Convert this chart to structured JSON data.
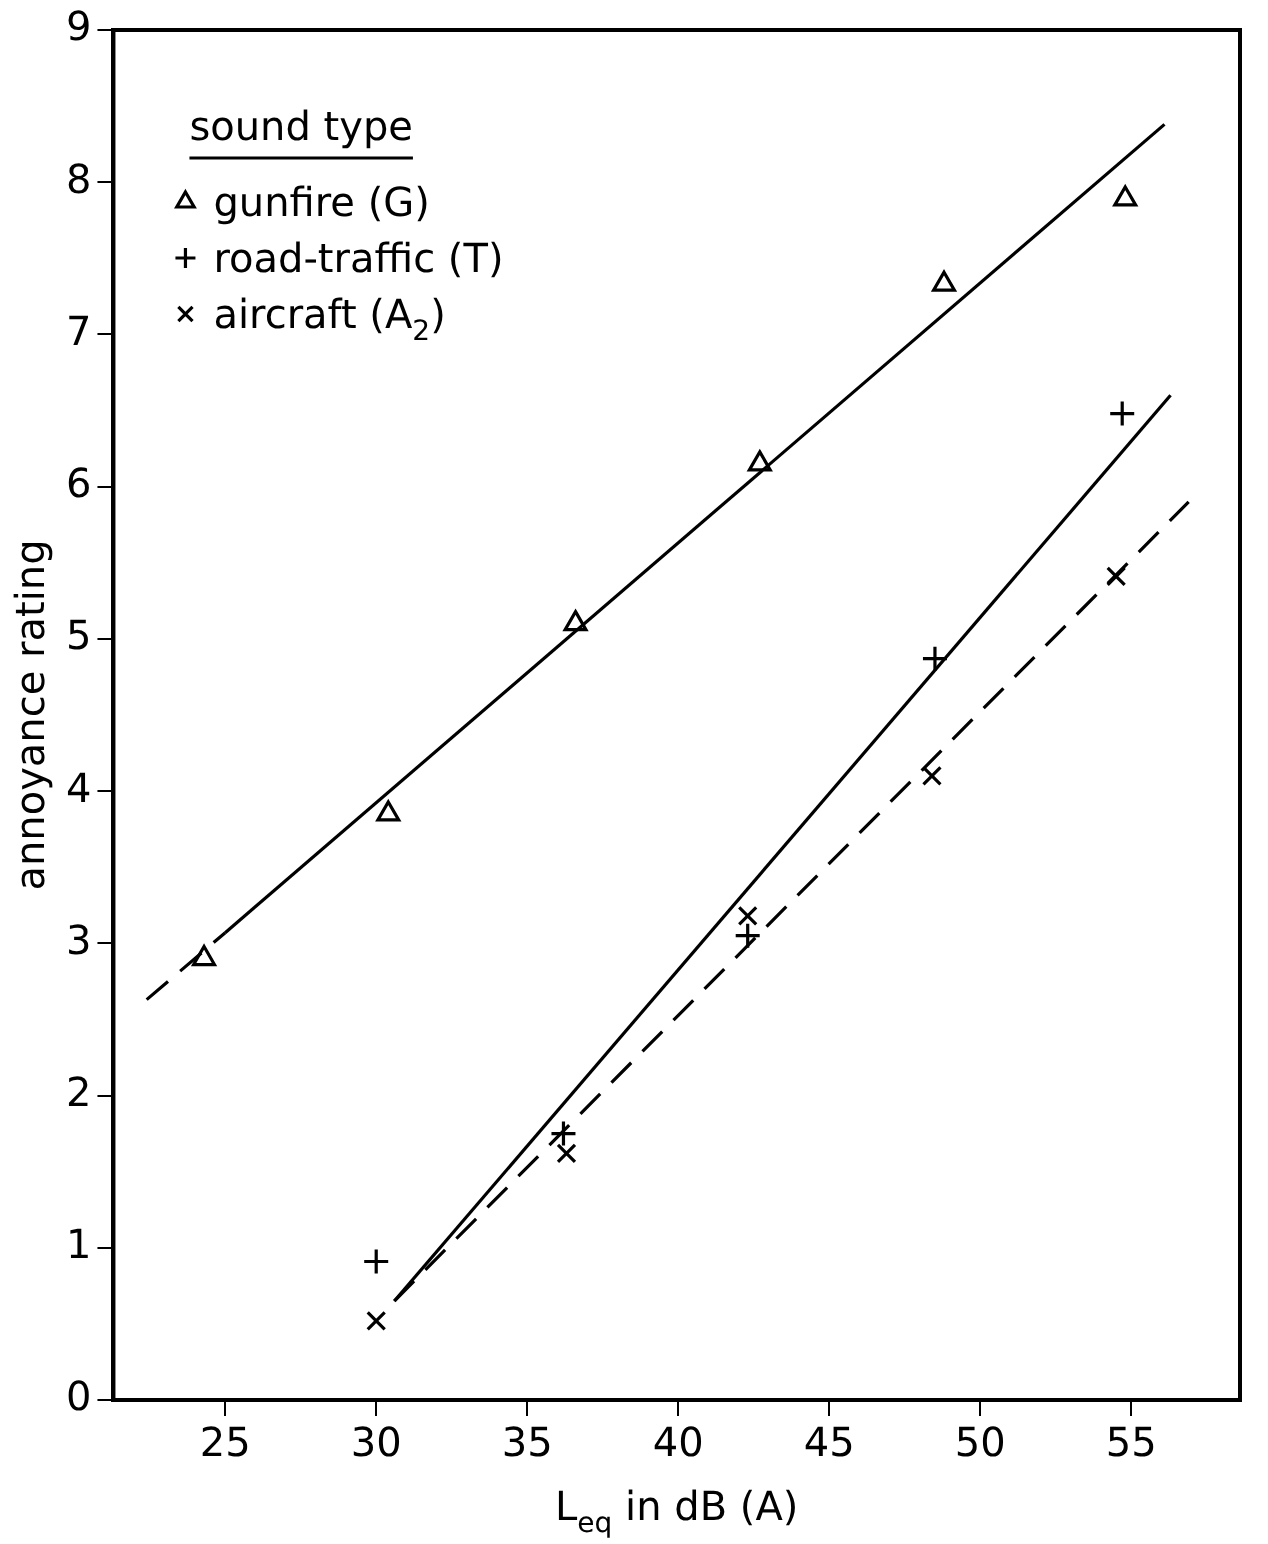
{
  "chart_data": {
    "type": "scatter",
    "xlabel": "L$_{eq}$ in dB (A)",
    "ylabel": "annoyance rating",
    "legend_title": "sound type",
    "legend": "top left",
    "grid": false,
    "xlim": [
      21.3,
      58.6
    ],
    "xticks": [
      25,
      30,
      35,
      40,
      45,
      50,
      55
    ],
    "ylim": [
      0,
      9
    ],
    "yticks": [
      0,
      1,
      2,
      3,
      4,
      5,
      6,
      7,
      8,
      9
    ],
    "series": [
      {
        "name": "gunfire (G)",
        "color": "#000000",
        "marker": "triangle",
        "x": [
          24.3,
          30.4,
          36.6,
          42.7,
          48.8,
          54.8
        ],
        "values": [
          2.9,
          3.85,
          5.1,
          6.15,
          7.33,
          7.89
        ]
      },
      {
        "name": "road-traffic (T)",
        "color": "#000000",
        "marker": "cross",
        "x": [
          30.0,
          36.2,
          42.3,
          48.5,
          54.7
        ],
        "values": [
          0.91,
          1.75,
          3.05,
          4.87,
          6.48
        ]
      },
      {
        "name": "aircraft (A$_{2}$)",
        "color": "#000000",
        "marker": "x",
        "x": [
          30.0,
          36.3,
          42.3,
          48.4,
          54.5
        ],
        "values": [
          0.52,
          1.62,
          3.18,
          4.1,
          5.41
        ]
      },
      {
        "type": "line",
        "color": "#000000",
        "marker": "none",
        "line_style": "dashed",
        "x": [
          22.4,
          25.0
        ],
        "values": [
          2.63,
          3.07
        ]
      },
      {
        "type": "line",
        "color": "#000000",
        "marker": "none",
        "line_style": "solid",
        "x": [
          25.0,
          56.1
        ],
        "values": [
          3.07,
          8.38
        ]
      },
      {
        "type": "line",
        "color": "#000000",
        "marker": "none",
        "line_style": "solid",
        "x": [
          30.6,
          56.3
        ],
        "values": [
          0.65,
          6.6
        ]
      },
      {
        "type": "line",
        "color": "#000000",
        "marker": "none",
        "line_style": "dashed",
        "x": [
          30.6,
          56.9
        ],
        "values": [
          0.65,
          5.9
        ]
      }
    ]
  }
}
